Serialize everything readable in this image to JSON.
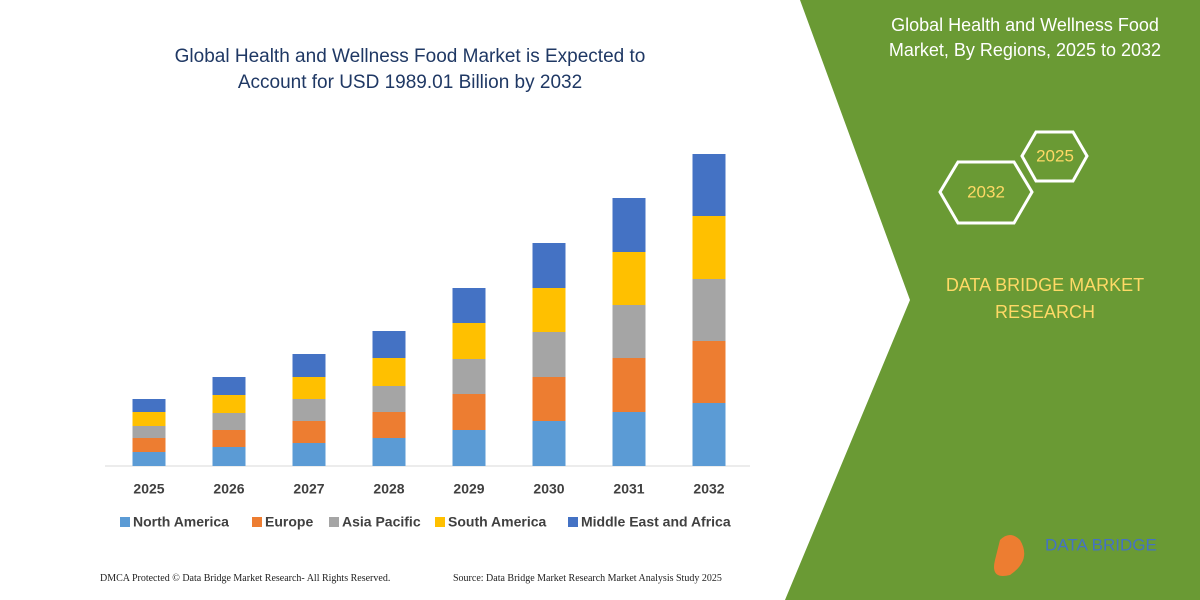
{
  "chart_data": {
    "type": "stacked_bar",
    "title": "Global Health and Wellness Food Market is Expected to Account for USD 1989.01 Billion by 2032",
    "categories": [
      "2025",
      "2026",
      "2027",
      "2028",
      "2029",
      "2030",
      "2031",
      "2032"
    ],
    "series": [
      {
        "name": "North America",
        "color": "#5b9bd5",
        "values": [
          14,
          19,
          23,
          28,
          36,
          45,
          54,
          63
        ]
      },
      {
        "name": "Europe",
        "color": "#ed7d31",
        "values": [
          14,
          17,
          22,
          26,
          36,
          44,
          54,
          62
        ]
      },
      {
        "name": "Asia Pacific",
        "color": "#a5a5a5",
        "values": [
          12,
          17,
          22,
          26,
          35,
          45,
          53,
          62
        ]
      },
      {
        "name": "South America",
        "color": "#ffc000",
        "values": [
          14,
          18,
          22,
          28,
          36,
          44,
          53,
          63
        ]
      },
      {
        "name": "Middle East and Africa",
        "color": "#4472c4",
        "values": [
          13,
          18,
          23,
          27,
          35,
          45,
          54,
          62
        ]
      }
    ],
    "ylim": [
      0,
      320
    ]
  },
  "panel": {
    "title": "Global Health and Wellness Food Market, By Regions, 2025 to 2032",
    "hex_top": "2025",
    "hex_bottom": "2032",
    "brand": "DATA BRIDGE MARKET RESEARCH"
  },
  "footer": {
    "left": "DMCA Protected © Data Bridge Market Research-  All Rights Reserved.",
    "right": "Source: Data Bridge Market Research  Market Analysis Study 2025",
    "logo": "DATA BRIDGE"
  }
}
